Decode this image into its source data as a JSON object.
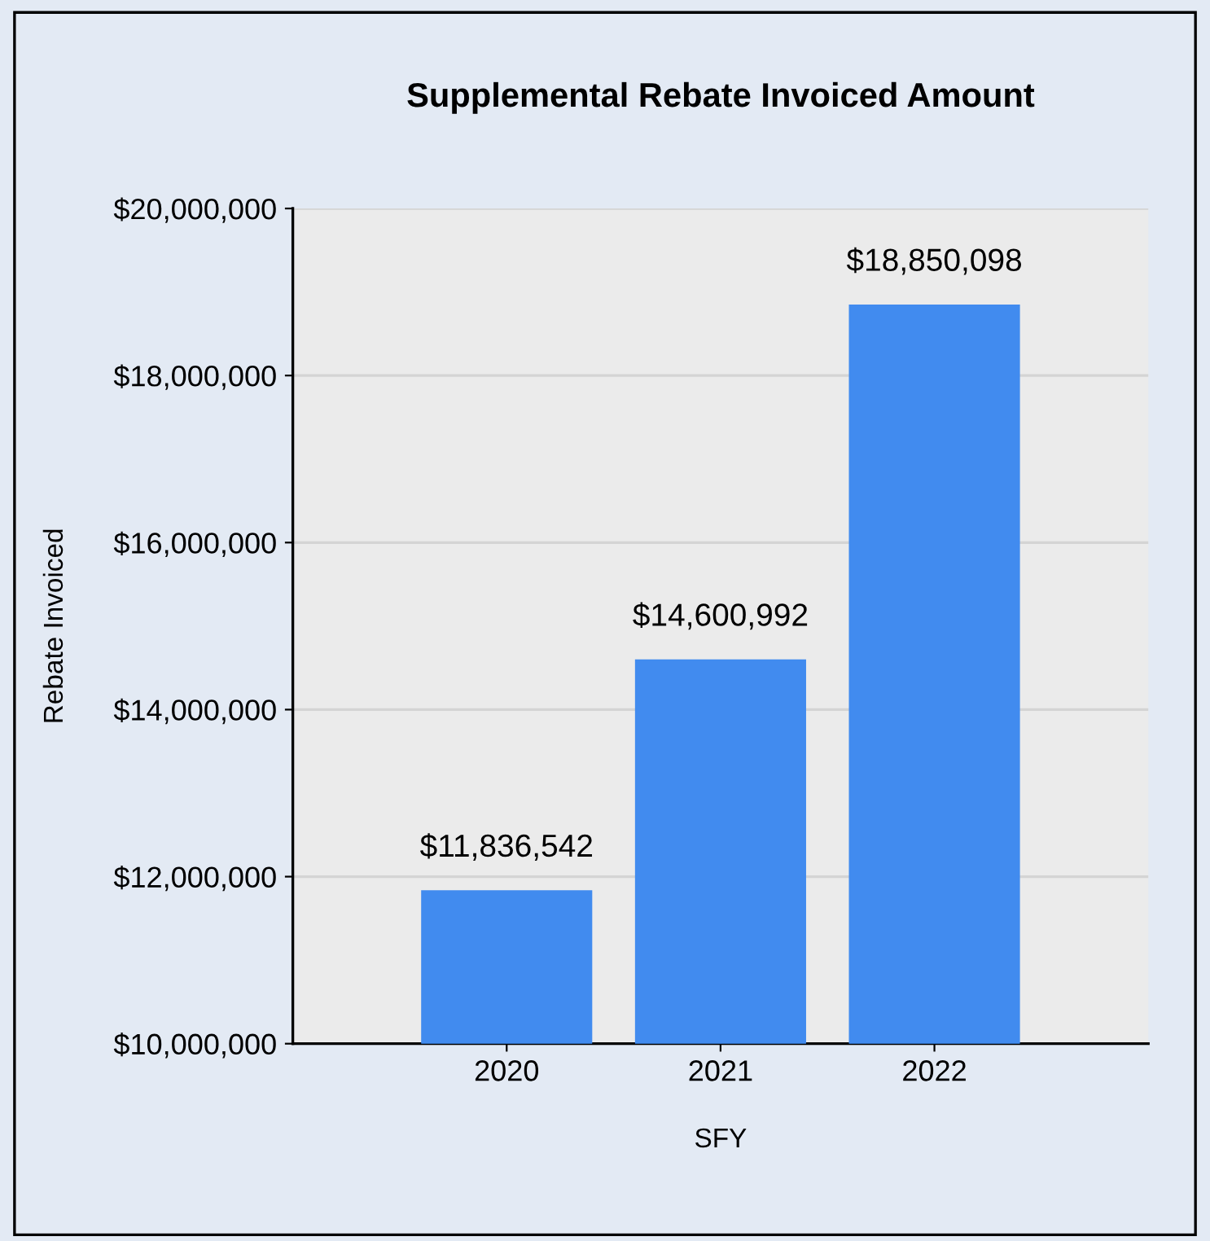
{
  "chart_data": {
    "type": "bar",
    "title": "Supplemental Rebate Invoiced Amount",
    "xlabel": "SFY",
    "ylabel": "Rebate Invoiced",
    "categories": [
      "2020",
      "2021",
      "2022"
    ],
    "values": [
      11836542,
      14600992,
      18850098
    ],
    "value_labels": [
      "$11,836,542",
      "$14,600,992",
      "$18,850,098"
    ],
    "color": "#418bef",
    "ylim": [
      10000000,
      20000000
    ],
    "yticks": [
      {
        "value": 10000000,
        "label": "$10,000,000"
      },
      {
        "value": 12000000,
        "label": "$12,000,000"
      },
      {
        "value": 14000000,
        "label": "$14,000,000"
      },
      {
        "value": 16000000,
        "label": "$16,000,000"
      },
      {
        "value": 18000000,
        "label": "$18,000,000"
      },
      {
        "value": 20000000,
        "label": "$20,000,000"
      }
    ],
    "grid": "y",
    "legend": false
  }
}
